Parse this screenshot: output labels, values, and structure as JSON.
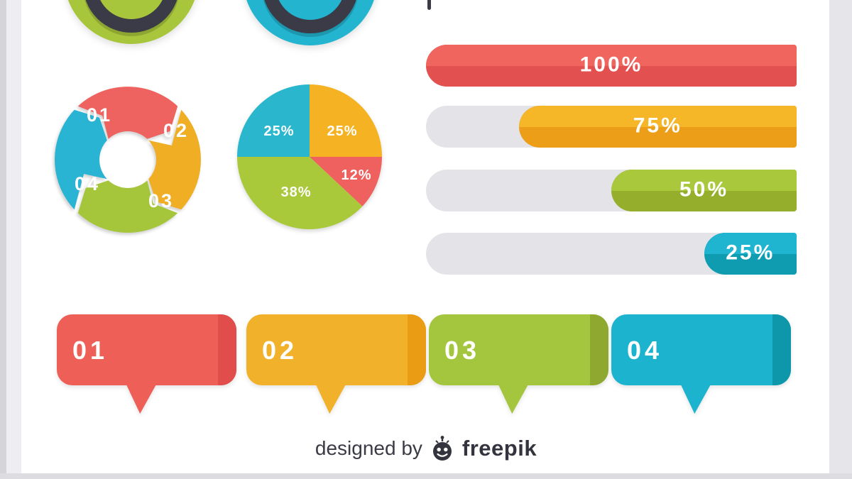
{
  "background": {
    "page": "#e8e7eb",
    "canvas": "#ffffff",
    "left_edge": "#d5d4d9",
    "right_edge": "#e6e5e9",
    "dark_accent": "#3b3b47",
    "track_gray": "#e4e3e8"
  },
  "gauges": [
    {
      "name": "green-gauge",
      "color": "#a8c63c",
      "ring_color": "#3b3b47"
    },
    {
      "name": "teal-gauge",
      "color": "#23b4cf",
      "ring_color": "#3b3b47"
    }
  ],
  "cycle_diagram": {
    "steps": [
      {
        "label": "01",
        "color": "#ee6360"
      },
      {
        "label": "02",
        "color": "#efae23"
      },
      {
        "label": "03",
        "color": "#a5c63a"
      },
      {
        "label": "04",
        "color": "#28b4d2"
      }
    ]
  },
  "chart_data": [
    {
      "type": "pie",
      "title": "",
      "labels": [
        "25%",
        "12%",
        "38%",
        "25%"
      ],
      "values": [
        25,
        12,
        38,
        25
      ],
      "colors": [
        "#f5b324",
        "#ef615e",
        "#a9c93a",
        "#2ab7ce"
      ],
      "start_angle_deg": 0,
      "direction": "clockwise",
      "legend": "none"
    },
    {
      "type": "bar",
      "orientation": "horizontal",
      "fill_anchor": "right",
      "labels": [
        "100%",
        "75%",
        "50%",
        "25%"
      ],
      "values": [
        100,
        75,
        50,
        25
      ],
      "colors_top": [
        "#f0665f",
        "#f5b628",
        "#a9c83c",
        "#1fb4cf"
      ],
      "colors_bottom": [
        "#e25150",
        "#ec9e19",
        "#95ae2b",
        "#0f9bb0"
      ],
      "track_color": "#e4e3e8",
      "xlim": [
        0,
        100
      ],
      "grid": false
    }
  ],
  "bubbles": [
    {
      "label": "01",
      "color": "#ee6057",
      "strip": "#e14d4a"
    },
    {
      "label": "02",
      "color": "#f2b12b",
      "strip": "#eb9c15"
    },
    {
      "label": "03",
      "color": "#a4c63e",
      "strip": "#8fa930"
    },
    {
      "label": "04",
      "color": "#1cb3cf",
      "strip": "#0e96ab"
    }
  ],
  "footer": {
    "credit_prefix": "designed by",
    "brand": "freepik"
  }
}
